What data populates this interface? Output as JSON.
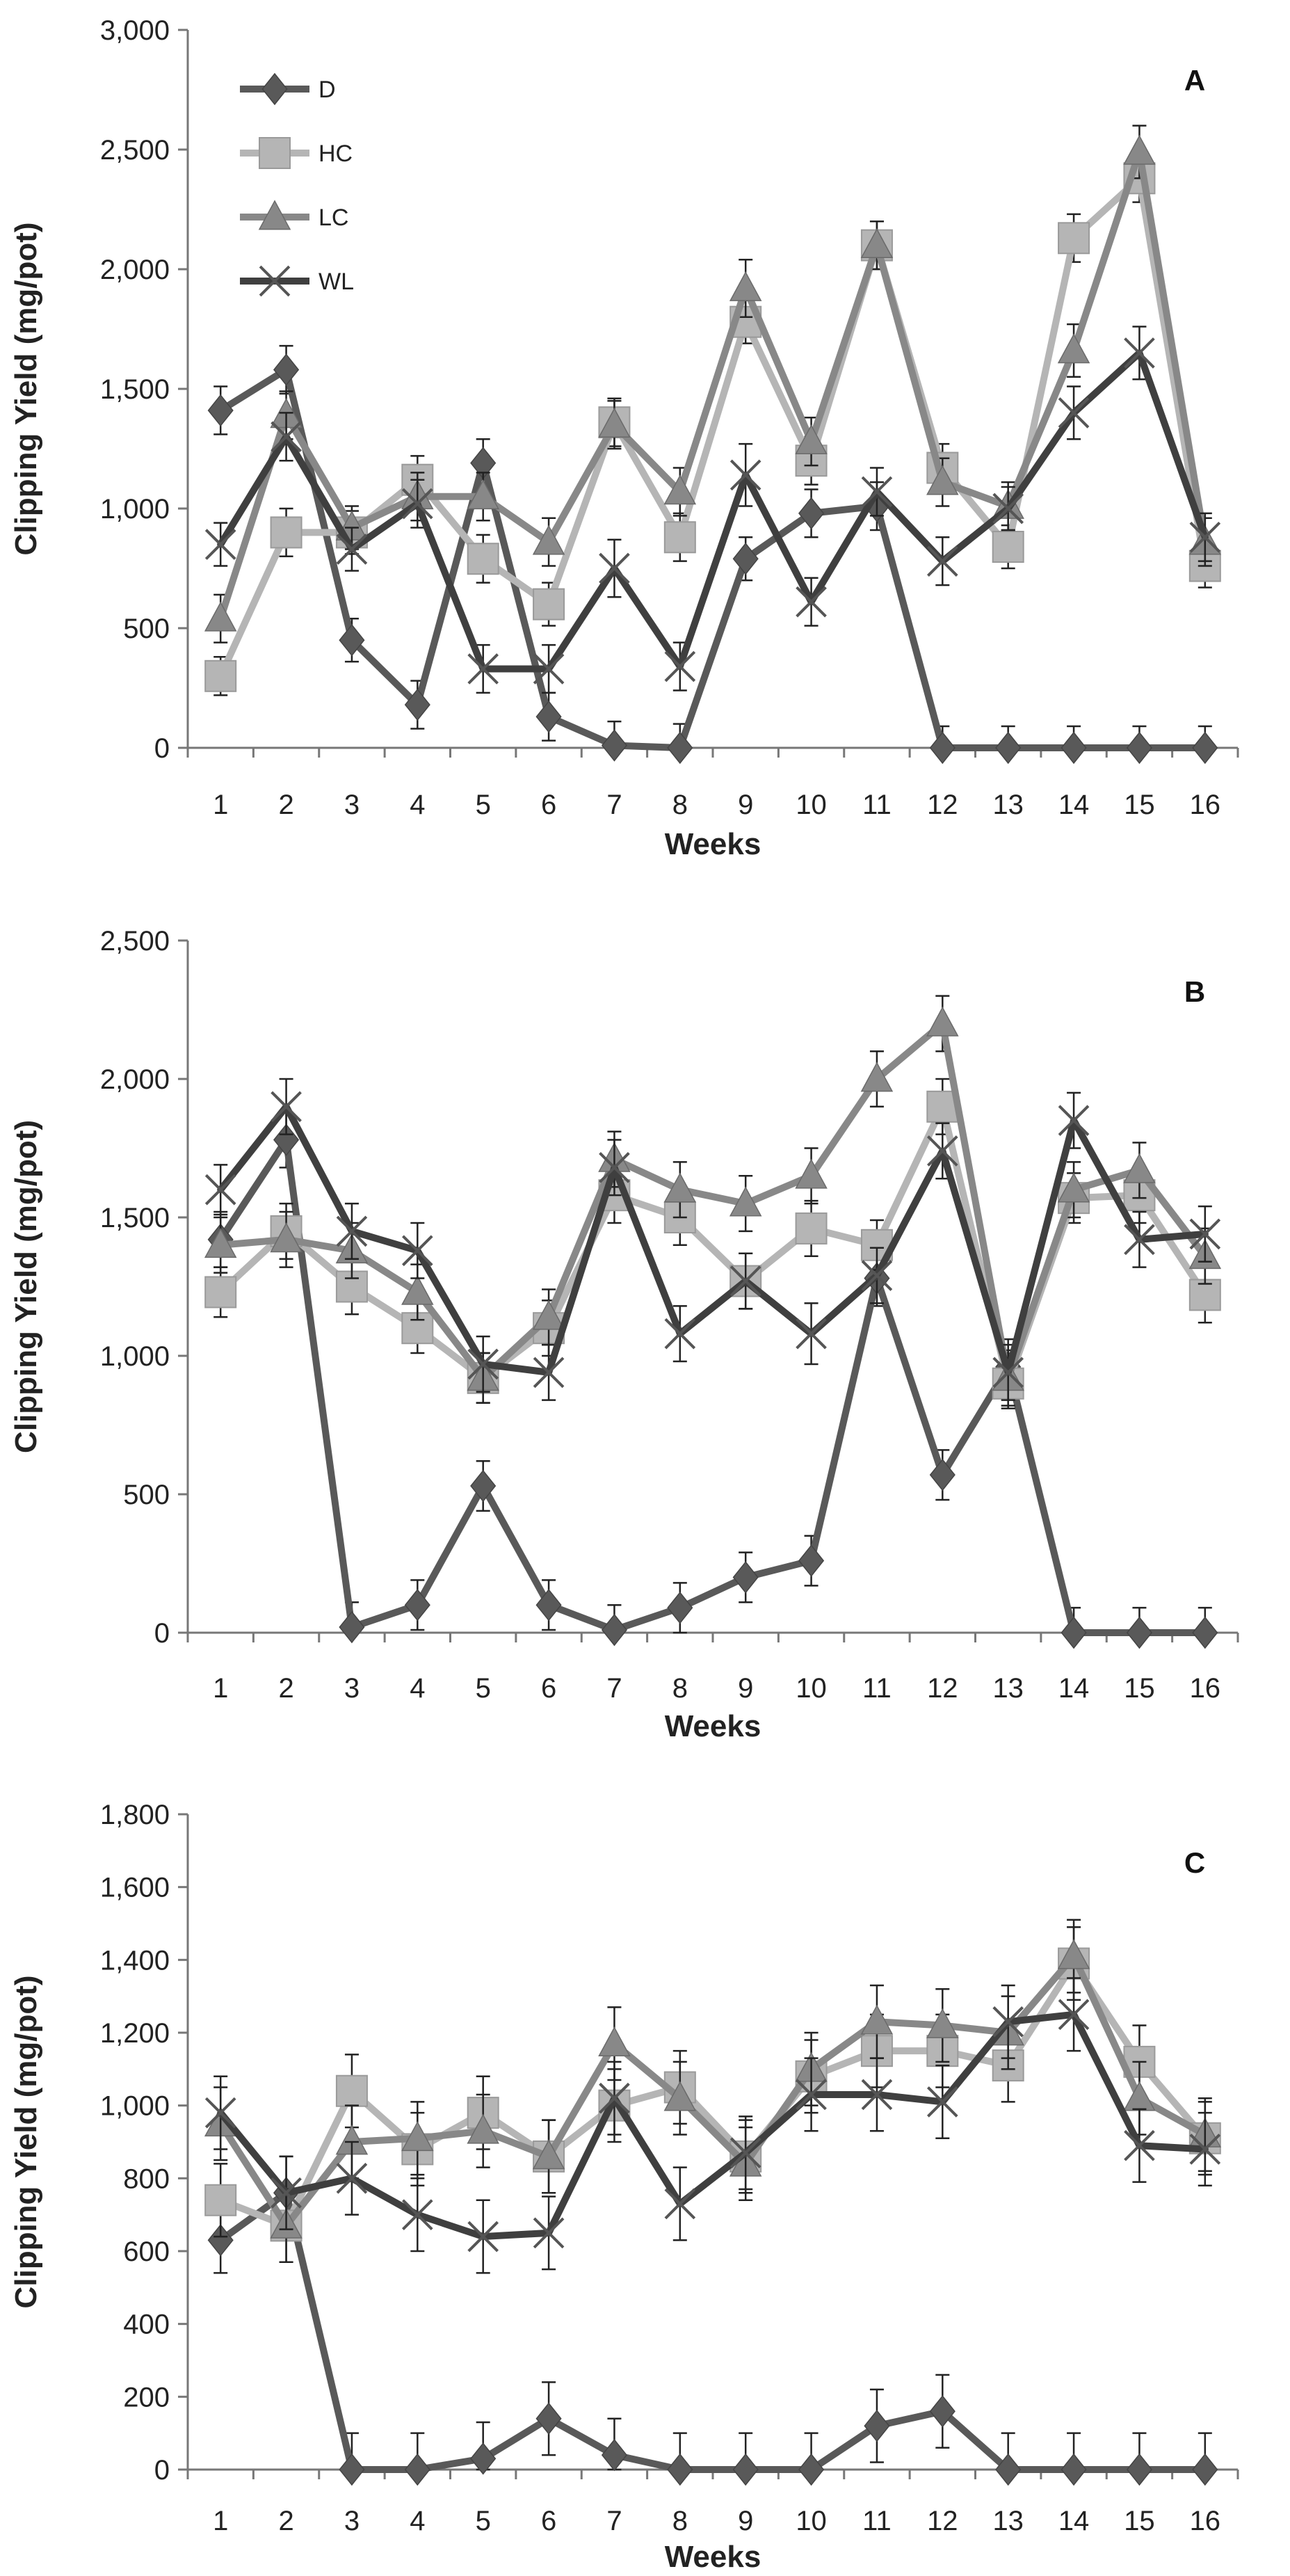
{
  "chart_data": [
    {
      "type": "line",
      "title": "A",
      "xlabel": "Weeks",
      "ylabel": "Clipping Yield (mg/pot)",
      "x": [
        1,
        2,
        3,
        4,
        5,
        6,
        7,
        8,
        9,
        10,
        11,
        12,
        13,
        14,
        15,
        16
      ],
      "ylim": [
        0,
        3000
      ],
      "yticks": [
        0,
        500,
        1000,
        1500,
        2000,
        2500,
        3000
      ],
      "ytick_labels": [
        "0",
        "500",
        "1,000",
        "1,500",
        "2,000",
        "2,500",
        "3,000"
      ],
      "legend": "top-left",
      "series": [
        {
          "name": "D",
          "values": [
            1410,
            1580,
            450,
            180,
            1190,
            130,
            10,
            0,
            790,
            980,
            1010,
            0,
            0,
            0,
            0,
            0
          ],
          "errors": [
            100,
            100,
            90,
            100,
            100,
            100,
            100,
            100,
            90,
            100,
            100,
            90,
            90,
            90,
            90,
            90
          ]
        },
        {
          "name": "HC",
          "values": [
            300,
            900,
            900,
            1120,
            790,
            600,
            1360,
            880,
            1780,
            1200,
            2100,
            1170,
            840,
            2130,
            2380,
            760
          ],
          "errors": [
            80,
            100,
            90,
            100,
            100,
            90,
            100,
            100,
            90,
            100,
            100,
            100,
            90,
            100,
            100,
            90
          ]
        },
        {
          "name": "LC",
          "values": [
            540,
            1390,
            920,
            1050,
            1050,
            860,
            1350,
            1070,
            1920,
            1280,
            2100,
            1110,
            1010,
            1660,
            2490,
            860
          ],
          "errors": [
            100,
            100,
            90,
            100,
            100,
            100,
            100,
            100,
            120,
            100,
            100,
            100,
            100,
            110,
            110,
            100
          ]
        },
        {
          "name": "WL",
          "values": [
            850,
            1300,
            830,
            1020,
            330,
            330,
            750,
            340,
            1140,
            610,
            1070,
            780,
            1000,
            1400,
            1650,
            880
          ],
          "errors": [
            90,
            100,
            90,
            100,
            100,
            100,
            120,
            100,
            130,
            100,
            100,
            100,
            90,
            110,
            110,
            100
          ]
        }
      ]
    },
    {
      "type": "line",
      "title": "B",
      "xlabel": "Weeks",
      "ylabel": "Clipping Yield (mg/pot)",
      "x": [
        1,
        2,
        3,
        4,
        5,
        6,
        7,
        8,
        9,
        10,
        11,
        12,
        13,
        14,
        15,
        16
      ],
      "ylim": [
        0,
        2500
      ],
      "yticks": [
        0,
        500,
        1000,
        1500,
        2000,
        2500
      ],
      "ytick_labels": [
        "0",
        "500",
        "1,000",
        "1,500",
        "2,000",
        "2,500"
      ],
      "series": [
        {
          "name": "D",
          "values": [
            1420,
            1780,
            20,
            100,
            530,
            100,
            10,
            90,
            200,
            260,
            1280,
            570,
            960,
            0,
            0,
            0
          ],
          "errors": [
            100,
            100,
            90,
            90,
            90,
            90,
            90,
            90,
            90,
            90,
            100,
            90,
            100,
            90,
            90,
            90
          ]
        },
        {
          "name": "HC",
          "values": [
            1230,
            1450,
            1250,
            1100,
            920,
            1100,
            1580,
            1500,
            1270,
            1460,
            1400,
            1900,
            900,
            1570,
            1580,
            1220
          ],
          "errors": [
            90,
            100,
            100,
            90,
            90,
            100,
            100,
            100,
            100,
            100,
            90,
            100,
            90,
            90,
            100,
            100
          ]
        },
        {
          "name": "LC",
          "values": [
            1400,
            1420,
            1380,
            1230,
            920,
            1140,
            1710,
            1600,
            1550,
            1650,
            2000,
            2200,
            920,
            1600,
            1670,
            1360
          ],
          "errors": [
            100,
            100,
            100,
            100,
            90,
            100,
            100,
            100,
            100,
            100,
            100,
            100,
            100,
            100,
            100,
            100
          ]
        },
        {
          "name": "WL",
          "values": [
            1600,
            1900,
            1450,
            1380,
            970,
            940,
            1680,
            1080,
            1270,
            1080,
            1290,
            1740,
            940,
            1850,
            1420,
            1440
          ],
          "errors": [
            90,
            100,
            100,
            100,
            100,
            100,
            100,
            100,
            100,
            110,
            100,
            100,
            100,
            100,
            100,
            100
          ]
        }
      ]
    },
    {
      "type": "line",
      "title": "C",
      "xlabel": "Weeks",
      "ylabel": "Clipping Yield (mg/pot)",
      "x": [
        1,
        2,
        3,
        4,
        5,
        6,
        7,
        8,
        9,
        10,
        11,
        12,
        13,
        14,
        15,
        16
      ],
      "ylim": [
        0,
        1800
      ],
      "yticks": [
        0,
        200,
        400,
        600,
        800,
        1000,
        1200,
        1400,
        1600,
        1800
      ],
      "ytick_labels": [
        "0",
        "200",
        "400",
        "600",
        "800",
        "1,000",
        "1,200",
        "1,400",
        "1,600",
        "1,800"
      ],
      "series": [
        {
          "name": "D",
          "values": [
            630,
            760,
            0,
            0,
            30,
            140,
            40,
            0,
            0,
            0,
            120,
            160,
            0,
            0,
            0,
            0
          ],
          "errors": [
            90,
            100,
            100,
            100,
            100,
            100,
            100,
            100,
            100,
            100,
            100,
            100,
            100,
            100,
            100,
            100
          ]
        },
        {
          "name": "HC",
          "values": [
            740,
            670,
            1040,
            880,
            980,
            860,
            1000,
            1050,
            860,
            1080,
            1150,
            1150,
            1110,
            1390,
            1120,
            910
          ],
          "errors": [
            100,
            100,
            100,
            100,
            100,
            100,
            100,
            100,
            100,
            100,
            100,
            100,
            100,
            100,
            100,
            100
          ]
        },
        {
          "name": "LC",
          "values": [
            950,
            670,
            900,
            910,
            930,
            860,
            1170,
            1020,
            840,
            1100,
            1230,
            1220,
            1200,
            1410,
            1020,
            920
          ],
          "errors": [
            100,
            100,
            100,
            100,
            100,
            100,
            100,
            100,
            100,
            100,
            100,
            100,
            100,
            100,
            100,
            100
          ]
        },
        {
          "name": "WL",
          "values": [
            980,
            760,
            800,
            700,
            640,
            650,
            1020,
            730,
            870,
            1030,
            1030,
            1010,
            1230,
            1250,
            890,
            880
          ],
          "errors": [
            100,
            100,
            100,
            100,
            100,
            100,
            100,
            100,
            100,
            100,
            100,
            100,
            100,
            100,
            100,
            100
          ]
        }
      ]
    }
  ],
  "series_styles": [
    {
      "name": "D",
      "color": "#595959",
      "marker": "diamond"
    },
    {
      "name": "HC",
      "color": "#b5b5b5",
      "marker": "square"
    },
    {
      "name": "LC",
      "color": "#888888",
      "marker": "triangle"
    },
    {
      "name": "WL",
      "color": "#3f3f3f",
      "marker": "x"
    }
  ]
}
